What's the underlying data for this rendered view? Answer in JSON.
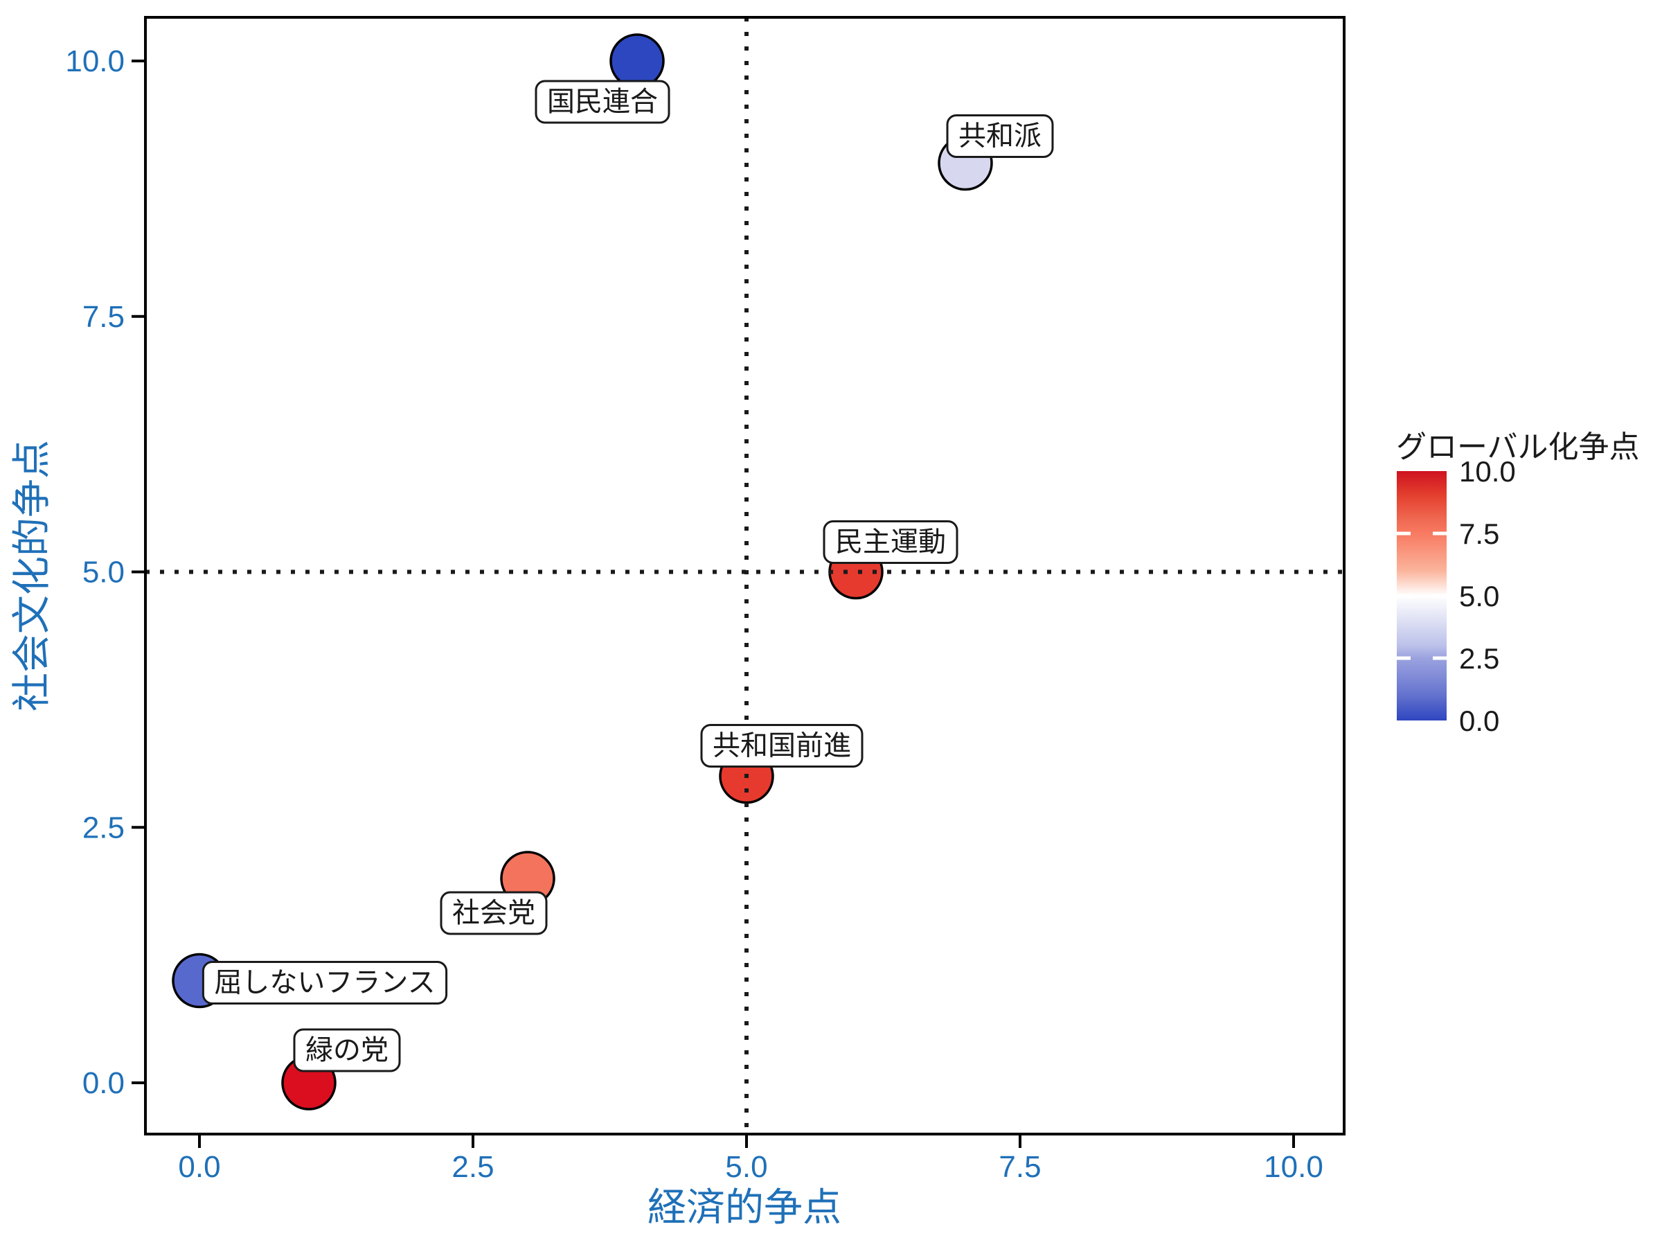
{
  "figure": {
    "background": "#FFFFFF",
    "axis_text_color": "#1F70B8",
    "axis_line_color": "#000000",
    "reference_line_color": "#1A1A1A",
    "label_box": {
      "fill": "#FFFFFF",
      "border": "#1A1A1A",
      "text_color": "#1A1A1A"
    }
  },
  "chart_data": {
    "type": "scatter",
    "title": "",
    "xlabel": "経済的争点",
    "ylabel": "社会文化的争点",
    "xlim": [
      0,
      10
    ],
    "ylim": [
      0,
      10
    ],
    "x_ticks": [
      "0.0",
      "2.5",
      "5.0",
      "7.5",
      "10.0"
    ],
    "y_ticks": [
      "0.0",
      "2.5",
      "5.0",
      "7.5",
      "10.0"
    ],
    "grid": false,
    "reference_lines": {
      "vertical_x": 5,
      "horizontal_y": 5,
      "style": "dotted"
    },
    "points": [
      {
        "label": "国民連合",
        "x": 4,
        "y": 10,
        "globalization": 0,
        "color": "#2C47BF",
        "label_offset": [
          -50,
          58
        ]
      },
      {
        "label": "共和派",
        "x": 7,
        "y": 9,
        "globalization": 4.5,
        "color": "#D7D8EF",
        "label_offset": [
          50,
          -40
        ]
      },
      {
        "label": "民主運動",
        "x": 6,
        "y": 5,
        "globalization": 9,
        "color": "#E63A2E",
        "label_offset": [
          50,
          -44
        ]
      },
      {
        "label": "共和国前進",
        "x": 5,
        "y": 3,
        "globalization": 9,
        "color": "#E63A2E",
        "label_offset": [
          51,
          -45
        ]
      },
      {
        "label": "社会党",
        "x": 3,
        "y": 2,
        "globalization": 7,
        "color": "#F4735C",
        "label_offset": [
          -49,
          49
        ]
      },
      {
        "label": "屈しないフランス",
        "x": 0,
        "y": 1,
        "globalization": 2,
        "color": "#5869CE",
        "label_offset": [
          181,
          2
        ]
      },
      {
        "label": "緑の党",
        "x": 1,
        "y": 0,
        "globalization": 10,
        "color": "#DA0E1F",
        "label_offset": [
          55,
          -48
        ]
      }
    ],
    "legend": {
      "title": "グローバル化争点",
      "position": "right",
      "range": [
        0,
        10
      ],
      "ticks": [
        "10.0",
        "7.5",
        "5.0",
        "2.5",
        "0.0"
      ],
      "tick_values": [
        10,
        7.5,
        5,
        2.5,
        0
      ],
      "bar_tick_values": [
        7.5,
        5,
        2.5
      ],
      "gradient": [
        {
          "v": 10,
          "color": "#CF1220"
        },
        {
          "v": 9,
          "color": "#E4412F"
        },
        {
          "v": 8,
          "color": "#F06B53"
        },
        {
          "v": 7.5,
          "color": "#F87A62"
        },
        {
          "v": 6,
          "color": "#FBB49C"
        },
        {
          "v": 5,
          "color": "#FFFFFF"
        },
        {
          "v": 4,
          "color": "#DEE0F4"
        },
        {
          "v": 3,
          "color": "#BCC1EA"
        },
        {
          "v": 2.5,
          "color": "#9AA2DF"
        },
        {
          "v": 2,
          "color": "#8A93DA"
        },
        {
          "v": 1,
          "color": "#6372CE"
        },
        {
          "v": 0,
          "color": "#2E46C0"
        }
      ]
    }
  }
}
